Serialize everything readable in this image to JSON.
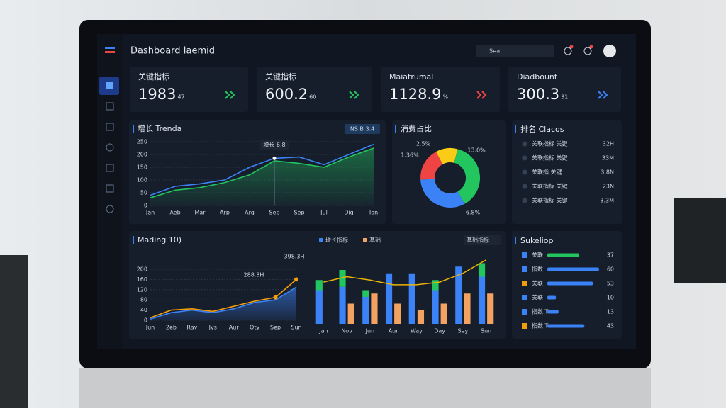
{
  "header": {
    "title": "Dashboard Iaemid",
    "search": "Sнаі"
  },
  "kpis": [
    {
      "label": "关键指标",
      "value": "1983",
      "delta": "47"
    },
    {
      "label": "关键指标",
      "value": "600.2",
      "delta": "60"
    },
    {
      "label": "Maiatrumal",
      "value": "1128.9",
      "delta": "%"
    },
    {
      "label": "Diadbount",
      "value": "300.3",
      "delta": "31"
    }
  ],
  "chart_data": [
    {
      "type": "area",
      "title": "增长 Trendа",
      "badge": "NS.B 3.4",
      "annotation": "增长 6.8",
      "categories": [
        "Jan",
        "Aeb",
        "Mar",
        "Arp",
        "Arg",
        "Sep",
        "Sep",
        "Jul",
        "Dig",
        "Ion"
      ],
      "ylim": [
        0,
        250
      ],
      "yticks": [
        0,
        50,
        100,
        150,
        200,
        250
      ],
      "grid": true,
      "series": [
        {
          "color": "#3b82f6",
          "values": [
            40,
            75,
            85,
            100,
            150,
            185,
            190,
            160,
            200,
            240
          ]
        },
        {
          "color": "#22c55e",
          "fill": true,
          "values": [
            30,
            60,
            70,
            90,
            120,
            175,
            165,
            150,
            190,
            225
          ]
        }
      ]
    },
    {
      "type": "pie",
      "title": "消费占比",
      "values": [
        12,
        38,
        32,
        18
      ],
      "colors": [
        "#facc15",
        "#22c55e",
        "#3b82f6",
        "#ef4444"
      ],
      "annotations": [
        "2.5%",
        "13.0%",
        "6.8%",
        "1.36%"
      ]
    },
    {
      "type": "line",
      "title": "Mading 10)",
      "categories": [
        "Jun",
        "2eb",
        "Rav",
        "Jvs",
        "Aur",
        "Oty",
        "Sep",
        "Sun"
      ],
      "ylim": [
        0,
        200
      ],
      "yticks": [
        0,
        40,
        80,
        120,
        160,
        200
      ],
      "grid": true,
      "annotations": [
        "288.3H",
        "398.3H"
      ],
      "series": [
        {
          "color": "#f59e0b",
          "values": [
            10,
            40,
            45,
            35,
            55,
            75,
            90,
            160
          ]
        },
        {
          "color": "#3b82f6",
          "fill": true,
          "values": [
            5,
            30,
            40,
            30,
            45,
            70,
            80,
            130
          ]
        }
      ]
    },
    {
      "type": "bar",
      "categories": [
        "Jan",
        "Nov",
        "Jun",
        "Aur",
        "Way",
        "Day",
        "Sey",
        "Sun"
      ],
      "ylim": [
        0,
        100
      ],
      "legend_filter": "基础指标",
      "series": [
        {
          "name": "增长指标",
          "color": "#3b82f6",
          "values": [
            50,
            55,
            40,
            75,
            75,
            50,
            85,
            70
          ]
        },
        {
          "color": "#22c55e",
          "stack": true,
          "values": [
            15,
            25,
            10,
            0,
            0,
            15,
            0,
            20
          ]
        },
        {
          "name": "基础",
          "color": "#f4a261",
          "values": [
            0,
            30,
            45,
            30,
            20,
            30,
            45,
            45
          ]
        },
        {
          "type": "line",
          "color": "#eab308",
          "values": [
            62,
            70,
            65,
            58,
            58,
            62,
            75,
            95
          ]
        }
      ]
    }
  ],
  "ranking": {
    "title": "排名 Clacos",
    "rows": [
      {
        "label": "关联指标 关键",
        "value": "32H"
      },
      {
        "label": "关联指标 关键",
        "value": "33M"
      },
      {
        "label": "关联指 关键",
        "value": "3.8N"
      },
      {
        "label": "关联指标 关键",
        "value": "23N"
      },
      {
        "label": "关联指标 关键",
        "value": "3.3M"
      }
    ]
  },
  "progress": {
    "title": "Sukeliop",
    "xlim": [
      0,
      70
    ],
    "rows": [
      {
        "label": "关联",
        "value": 37,
        "color": "#22c55e"
      },
      {
        "label": "指数",
        "value": 60,
        "color": "#3b82f6"
      },
      {
        "label": "关联",
        "value": 53,
        "color": "#3b82f6"
      },
      {
        "label": "关联",
        "value": 10,
        "color": "#3b82f6"
      },
      {
        "label": "指数 Tbn",
        "value": 13,
        "color": "#3b82f6"
      },
      {
        "label": "指数 Tbn",
        "value": 43,
        "color": "#3b82f6"
      }
    ]
  }
}
